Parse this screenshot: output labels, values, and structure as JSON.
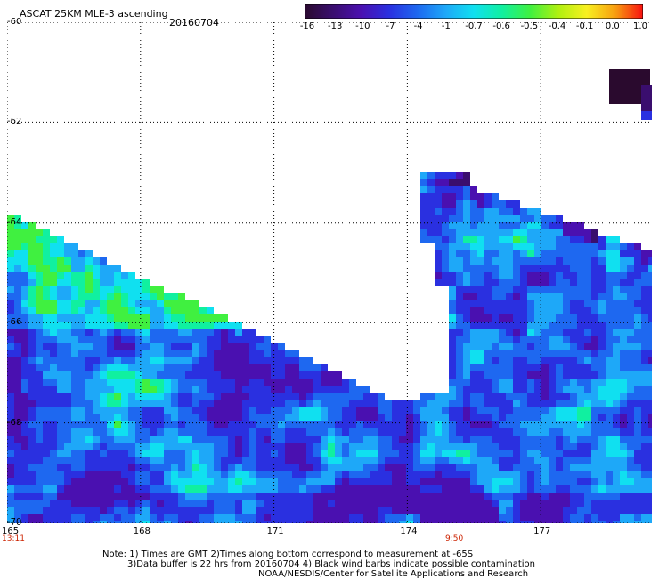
{
  "header": {
    "title": "ASCAT 25KM MLE-3 ascending",
    "date": "20160704"
  },
  "colorbar": {
    "labels": [
      "-16",
      "-13",
      "-10",
      "-7",
      "-4",
      "-1",
      "-0.7",
      "-0.6",
      "-0.5",
      "-0.4",
      "-0.1",
      "0.0",
      "1.0"
    ],
    "colors": [
      "#2a0a2e",
      "#3a0e6e",
      "#4a10b0",
      "#2a30e0",
      "#1e68f0",
      "#1ea8f8",
      "#10e0f0",
      "#10f0a0",
      "#40f040",
      "#b0f010",
      "#f8f020",
      "#f8a010",
      "#f81010"
    ]
  },
  "map": {
    "lon_labels": [
      "165",
      "168",
      "171",
      "174",
      "177"
    ],
    "lat_labels": [
      "-60",
      "-62",
      "-64",
      "-66",
      "-68",
      "-70"
    ],
    "time_left": "13:11",
    "time_right": "9:50",
    "grid": true
  },
  "notes": {
    "line1": "Note: 1) Times are GMT 2)Times along bottom correspond to measurement at -65S",
    "line2": "3)Data buffer is 22 hrs from 20160704 4) Black wind barbs indicate possible contamination",
    "line3": "NOAA/NESDIS/Center for Satellite Applications and Research"
  }
}
